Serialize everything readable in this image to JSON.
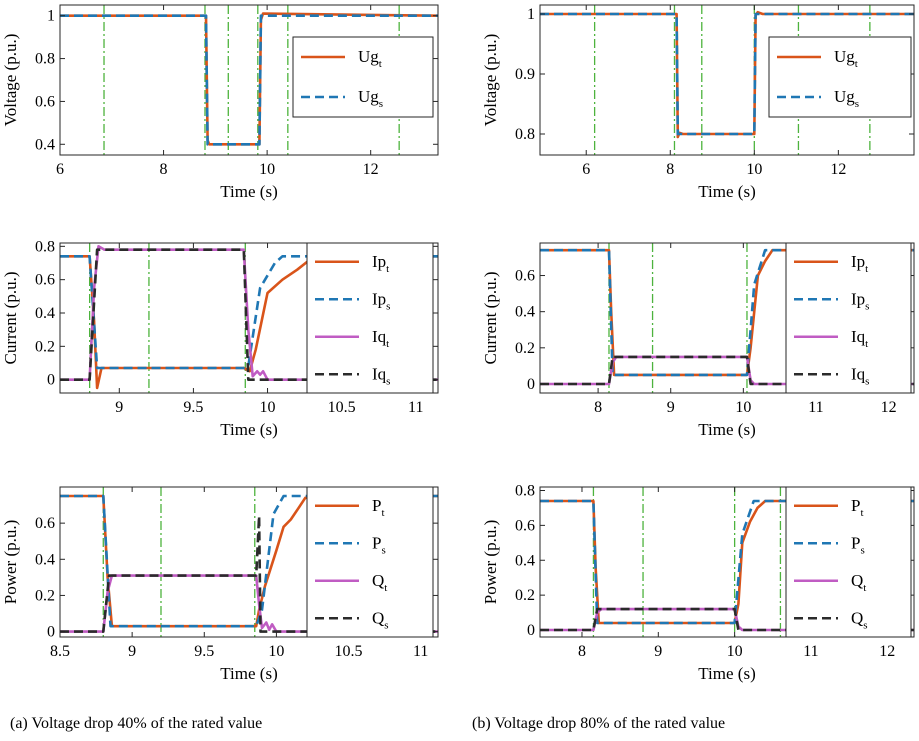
{
  "captions": {
    "left": "(a) Voltage drop 40% of the rated value",
    "right": "(b) Voltage drop 80% of the rated value"
  },
  "colors": {
    "measured": "#D9541A",
    "simulated": "#1F77B4",
    "reactive_measured": "#C05CC3",
    "reactive_simulated": "#2B2B2B",
    "event_lines": "#4DB33D"
  },
  "chart_data": [
    {
      "type": "line",
      "xlabel": "Time (s)",
      "ylabel": "Voltage (p.u.)",
      "xlim": [
        6.0,
        13.3
      ],
      "ylim": [
        0.35,
        1.05
      ],
      "xticks": [
        6,
        8,
        10,
        12
      ],
      "xticklabels": [
        "6",
        "8",
        "10",
        "12"
      ],
      "yticks": [
        0.4,
        0.6,
        0.8,
        1.0
      ],
      "yticklabels": [
        "0.4",
        "0.6",
        "0.8",
        "1"
      ],
      "event_lines_x": [
        6.85,
        8.8,
        9.25,
        9.82,
        10.4,
        12.55
      ],
      "legend": {
        "position": "right"
      },
      "series": [
        {
          "name": "Ug",
          "sub": "t",
          "style": "solid",
          "color_key": "measured",
          "x": [
            6.0,
            8.82,
            8.85,
            8.88,
            9.85,
            9.88,
            9.92,
            13.3
          ],
          "y": [
            1.0,
            1.0,
            0.42,
            0.4,
            0.4,
            0.98,
            1.01,
            1.0
          ]
        },
        {
          "name": "Ug",
          "sub": "s",
          "style": "dashed",
          "color_key": "simulated",
          "x": [
            6.0,
            8.82,
            8.85,
            9.85,
            9.88,
            13.3
          ],
          "y": [
            1.0,
            1.0,
            0.4,
            0.4,
            1.0,
            1.0
          ]
        }
      ]
    },
    {
      "type": "line",
      "xlabel": "Time (s)",
      "ylabel": "Voltage (p.u.)",
      "xlim": [
        4.9,
        13.8
      ],
      "ylim": [
        0.765,
        1.015
      ],
      "xticks": [
        6,
        8,
        10,
        12
      ],
      "xticklabels": [
        "6",
        "8",
        "10",
        "12"
      ],
      "yticks": [
        0.8,
        0.9,
        1.0
      ],
      "yticklabels": [
        "0.8",
        "0.9",
        "1"
      ],
      "event_lines_x": [
        6.2,
        8.1,
        8.75,
        10.0,
        11.05,
        12.75
      ],
      "legend": {
        "position": "right"
      },
      "series": [
        {
          "name": "Ug",
          "sub": "t",
          "style": "solid",
          "color_key": "measured",
          "x": [
            4.9,
            8.15,
            8.18,
            8.22,
            8.3,
            10.0,
            10.03,
            10.08,
            10.2,
            13.8
          ],
          "y": [
            1.0,
            1.0,
            0.795,
            0.802,
            0.8,
            0.8,
            0.998,
            1.003,
            1.0,
            1.0
          ]
        },
        {
          "name": "Ug",
          "sub": "s",
          "style": "dashed",
          "color_key": "simulated",
          "x": [
            4.9,
            8.15,
            8.18,
            10.0,
            10.03,
            13.8
          ],
          "y": [
            1.0,
            1.0,
            0.8,
            0.8,
            1.0,
            1.0
          ]
        }
      ]
    },
    {
      "type": "line",
      "xlabel": "Time (s)",
      "ylabel": "Current (p.u.)",
      "xlim": [
        8.6,
        11.15
      ],
      "ylim": [
        -0.08,
        0.82
      ],
      "xticks": [
        9,
        9.5,
        10,
        10.5,
        11
      ],
      "xticklabels": [
        "9",
        "9.5",
        "10",
        "10.5",
        "11"
      ],
      "yticks": [
        0,
        0.2,
        0.4,
        0.6,
        0.8
      ],
      "yticklabels": [
        "0",
        "0.2",
        "0.4",
        "0.6",
        "0.8"
      ],
      "event_lines_x": [
        8.8,
        9.2,
        9.85,
        10.4
      ],
      "legend": {
        "position": "right"
      },
      "series": [
        {
          "name": "Ip",
          "sub": "t",
          "style": "solid",
          "color_key": "measured",
          "x": [
            8.6,
            8.8,
            8.83,
            8.85,
            8.88,
            9.0,
            9.84,
            9.88,
            9.92,
            9.96,
            10.0,
            10.1,
            10.2,
            10.3,
            11.15
          ],
          "y": [
            0.74,
            0.74,
            0.35,
            -0.05,
            0.07,
            0.07,
            0.07,
            0.05,
            0.18,
            0.35,
            0.52,
            0.6,
            0.66,
            0.73,
            0.74
          ]
        },
        {
          "name": "Ip",
          "sub": "s",
          "style": "dashed",
          "color_key": "simulated",
          "x": [
            8.6,
            8.8,
            8.85,
            9.84,
            9.87,
            9.95,
            10.05,
            10.1,
            10.15,
            11.15
          ],
          "y": [
            0.74,
            0.74,
            0.07,
            0.07,
            0.08,
            0.55,
            0.7,
            0.74,
            0.74,
            0.74
          ]
        },
        {
          "name": "Iq",
          "sub": "t",
          "style": "solid",
          "color_key": "reactive_measured",
          "x": [
            8.6,
            8.8,
            8.83,
            8.86,
            8.9,
            9.84,
            9.87,
            9.9,
            9.93,
            9.95,
            9.97,
            10.0,
            11.15
          ],
          "y": [
            0.0,
            0.0,
            0.55,
            0.8,
            0.78,
            0.78,
            0.3,
            0.02,
            0.05,
            0.03,
            0.05,
            0.0,
            0.0
          ]
        },
        {
          "name": "Iq",
          "sub": "s",
          "style": "dashed",
          "color_key": "reactive_simulated",
          "x": [
            8.6,
            8.8,
            8.85,
            9.84,
            9.87,
            9.9,
            11.15
          ],
          "y": [
            0.0,
            0.0,
            0.78,
            0.78,
            0.0,
            0.0,
            0.0
          ]
        }
      ]
    },
    {
      "type": "line",
      "xlabel": "Time (s)",
      "ylabel": "Current (p.u.)",
      "xlim": [
        7.2,
        12.35
      ],
      "ylim": [
        -0.05,
        0.78
      ],
      "xticks": [
        8,
        9,
        10,
        11,
        12
      ],
      "xticklabels": [
        "8",
        "9",
        "10",
        "11",
        "12"
      ],
      "yticks": [
        0,
        0.2,
        0.4,
        0.6
      ],
      "yticklabels": [
        "0",
        "0.2",
        "0.4",
        "0.6"
      ],
      "event_lines_x": [
        8.15,
        8.75,
        10.05,
        10.6
      ],
      "legend": {
        "position": "right"
      },
      "series": [
        {
          "name": "Ip",
          "sub": "t",
          "style": "solid",
          "color_key": "measured",
          "x": [
            7.2,
            8.15,
            8.18,
            8.22,
            10.05,
            10.1,
            10.2,
            10.3,
            10.4,
            12.35
          ],
          "y": [
            0.74,
            0.74,
            0.4,
            0.05,
            0.05,
            0.2,
            0.6,
            0.68,
            0.74,
            0.74
          ]
        },
        {
          "name": "Ip",
          "sub": "s",
          "style": "dashed",
          "color_key": "simulated",
          "x": [
            7.2,
            8.15,
            8.2,
            10.05,
            10.15,
            10.3,
            12.35
          ],
          "y": [
            0.74,
            0.74,
            0.05,
            0.05,
            0.55,
            0.74,
            0.74
          ]
        },
        {
          "name": "Iq",
          "sub": "t",
          "style": "solid",
          "color_key": "reactive_measured",
          "x": [
            7.2,
            8.15,
            8.2,
            8.25,
            10.05,
            10.1,
            10.15,
            12.35
          ],
          "y": [
            0.0,
            0.0,
            0.12,
            0.15,
            0.15,
            0.02,
            0.0,
            0.0
          ]
        },
        {
          "name": "Iq",
          "sub": "s",
          "style": "dashed",
          "color_key": "reactive_simulated",
          "x": [
            7.2,
            8.15,
            8.2,
            10.05,
            10.1,
            12.35
          ],
          "y": [
            0.0,
            0.0,
            0.15,
            0.15,
            0.0,
            0.0
          ]
        }
      ]
    },
    {
      "type": "line",
      "xlabel": "Time (s)",
      "ylabel": "Power (p.u.)",
      "xlim": [
        8.5,
        11.12
      ],
      "ylim": [
        -0.03,
        0.8
      ],
      "xticks": [
        8.5,
        9,
        9.5,
        10,
        10.5,
        11
      ],
      "xticklabels": [
        "8.5",
        "9",
        "9.5",
        "10",
        "10.5",
        "11"
      ],
      "yticks": [
        0,
        0.2,
        0.4,
        0.6
      ],
      "yticklabels": [
        "0",
        "0.2",
        "0.4",
        "0.6"
      ],
      "event_lines_x": [
        8.8,
        9.2,
        9.85,
        10.4
      ],
      "legend": {
        "position": "right"
      },
      "series": [
        {
          "name": "P",
          "sub": "t",
          "style": "solid",
          "color_key": "measured",
          "x": [
            8.5,
            8.8,
            8.83,
            8.86,
            9.86,
            9.88,
            9.92,
            10.0,
            10.05,
            10.1,
            10.15,
            10.2,
            11.12
          ],
          "y": [
            0.75,
            0.75,
            0.3,
            0.03,
            0.03,
            0.12,
            0.25,
            0.45,
            0.58,
            0.62,
            0.68,
            0.74,
            0.75
          ]
        },
        {
          "name": "P",
          "sub": "s",
          "style": "dashed",
          "color_key": "simulated",
          "x": [
            8.5,
            8.8,
            8.85,
            9.86,
            9.9,
            9.98,
            10.05,
            11.12
          ],
          "y": [
            0.75,
            0.75,
            0.03,
            0.03,
            0.12,
            0.65,
            0.75,
            0.75
          ]
        },
        {
          "name": "Q",
          "sub": "t",
          "style": "solid",
          "color_key": "reactive_measured",
          "x": [
            8.5,
            8.8,
            8.83,
            8.86,
            9.86,
            9.88,
            9.9,
            9.93,
            9.95,
            9.97,
            10.0,
            11.12
          ],
          "y": [
            0.0,
            0.0,
            0.22,
            0.31,
            0.31,
            0.15,
            0.02,
            0.05,
            0.01,
            0.04,
            0.0,
            0.0
          ]
        },
        {
          "name": "Q",
          "sub": "s",
          "style": "dashed",
          "color_key": "reactive_simulated",
          "x": [
            8.5,
            8.8,
            8.84,
            9.86,
            9.88,
            9.89,
            9.91,
            11.12
          ],
          "y": [
            0.0,
            0.0,
            0.31,
            0.31,
            0.64,
            0.0,
            0.0,
            0.0
          ]
        }
      ]
    },
    {
      "type": "line",
      "xlabel": "Time (s)",
      "ylabel": "Power (p.u.)",
      "xlim": [
        7.45,
        12.35
      ],
      "ylim": [
        -0.04,
        0.82
      ],
      "xticks": [
        8,
        9,
        10,
        11,
        12
      ],
      "xticklabels": [
        "8",
        "9",
        "10",
        "11",
        "12"
      ],
      "yticks": [
        0,
        0.2,
        0.4,
        0.6,
        0.8
      ],
      "yticklabels": [
        "0",
        "0.2",
        "0.4",
        "0.6",
        "0.8"
      ],
      "event_lines_x": [
        8.15,
        8.8,
        10.0,
        10.6
      ],
      "legend": {
        "position": "right"
      },
      "series": [
        {
          "name": "P",
          "sub": "t",
          "style": "solid",
          "color_key": "measured",
          "x": [
            7.45,
            8.15,
            8.18,
            8.22,
            10.0,
            10.05,
            10.1,
            10.2,
            10.3,
            10.4,
            12.35
          ],
          "y": [
            0.74,
            0.74,
            0.35,
            0.04,
            0.04,
            0.15,
            0.5,
            0.62,
            0.7,
            0.74,
            0.74
          ]
        },
        {
          "name": "P",
          "sub": "s",
          "style": "dashed",
          "color_key": "simulated",
          "x": [
            7.45,
            8.15,
            8.2,
            10.0,
            10.1,
            10.25,
            12.35
          ],
          "y": [
            0.74,
            0.74,
            0.04,
            0.04,
            0.55,
            0.74,
            0.74
          ]
        },
        {
          "name": "Q",
          "sub": "t",
          "style": "solid",
          "color_key": "reactive_measured",
          "x": [
            7.45,
            8.15,
            8.2,
            8.25,
            10.0,
            10.05,
            10.1,
            12.35
          ],
          "y": [
            0.0,
            0.0,
            0.1,
            0.12,
            0.12,
            0.02,
            0.0,
            0.0
          ]
        },
        {
          "name": "Q",
          "sub": "s",
          "style": "dashed",
          "color_key": "reactive_simulated",
          "x": [
            7.45,
            8.15,
            8.2,
            10.0,
            10.05,
            12.35
          ],
          "y": [
            0.0,
            0.0,
            0.12,
            0.12,
            0.0,
            0.0
          ]
        }
      ]
    }
  ]
}
